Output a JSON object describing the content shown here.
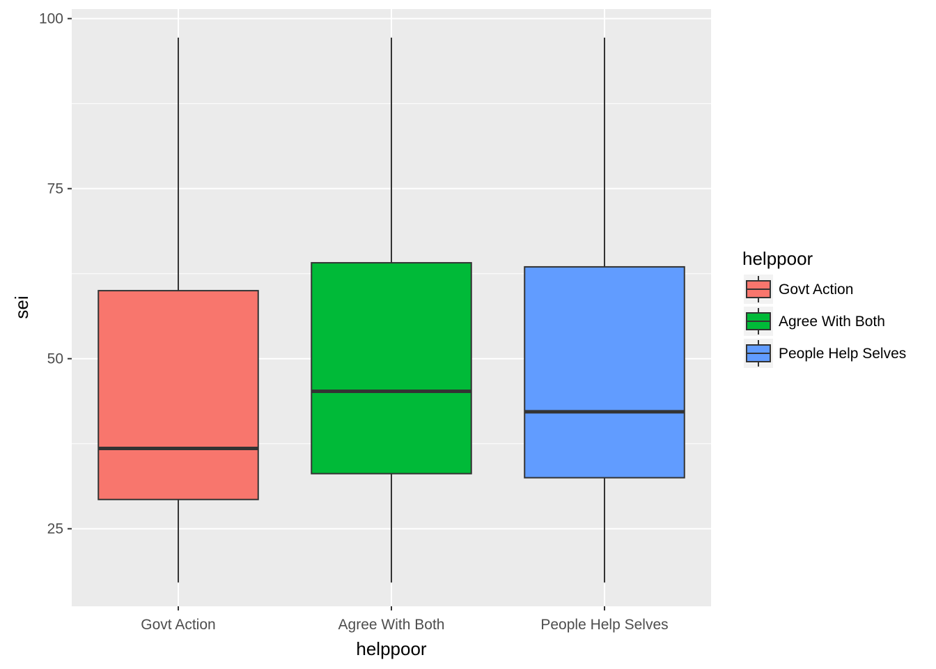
{
  "chart_data": {
    "type": "boxplot",
    "title": "",
    "xlabel": "helppoor",
    "ylabel": "sei",
    "categories": [
      "Govt Action",
      "Agree With Both",
      "People Help Selves"
    ],
    "colors": [
      "#F8766D",
      "#00BA38",
      "#619CFF"
    ],
    "boxes": [
      {
        "category": "Govt Action",
        "min": 17.1,
        "q1": 29.3,
        "median": 36.8,
        "q3": 60.0,
        "max": 97.2
      },
      {
        "category": "Agree With Both",
        "min": 17.1,
        "q1": 33.1,
        "median": 45.2,
        "q3": 64.1,
        "max": 97.2
      },
      {
        "category": "People Help Selves",
        "min": 17.1,
        "q1": 32.5,
        "median": 42.2,
        "q3": 63.5,
        "max": 97.2
      }
    ],
    "yticks": [
      25,
      50,
      75,
      100
    ],
    "ylim": [
      13.6,
      101.4
    ],
    "grid": true,
    "legend": {
      "title": "helppoor",
      "position": "right",
      "entries": [
        "Govt Action",
        "Agree With Both",
        "People Help Selves"
      ]
    }
  }
}
